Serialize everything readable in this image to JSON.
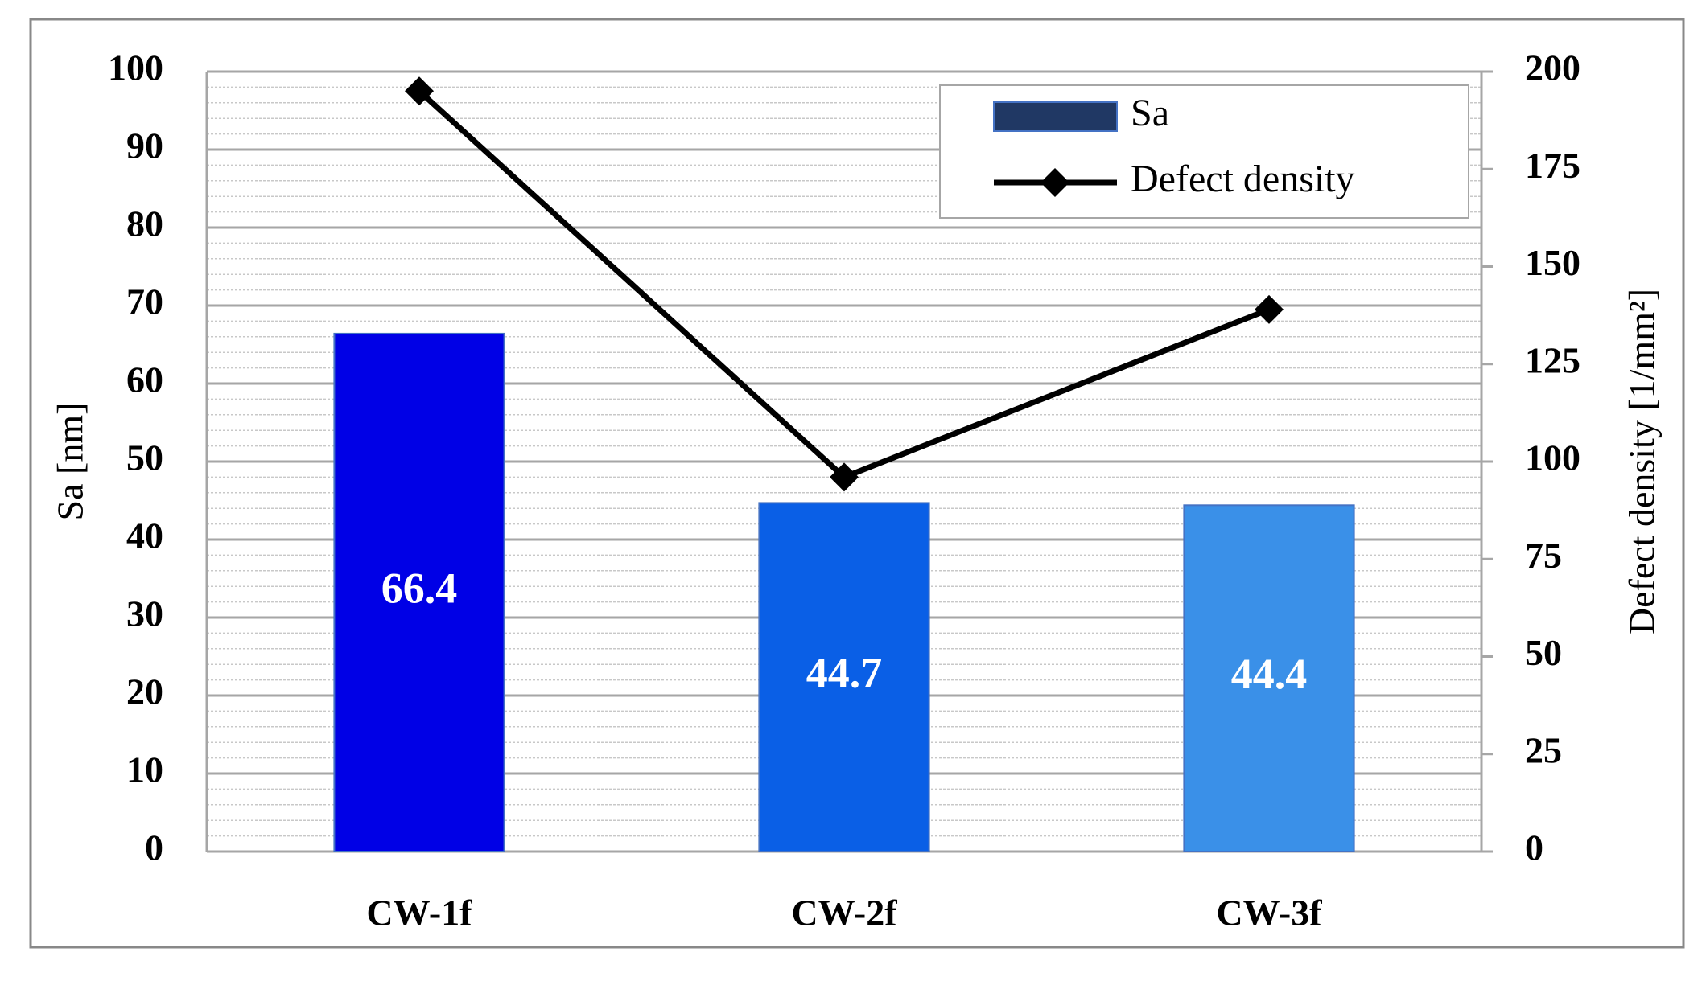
{
  "chart_data": {
    "type": "bar",
    "categories": [
      "CW-1f",
      "CW-2f",
      "CW-3f"
    ],
    "series": [
      {
        "name": "Sa",
        "type": "bar",
        "color": "#203864",
        "bar_colors": [
          "#0000e6",
          "#0a5fe6",
          "#3a90e8"
        ],
        "values": [
          66.4,
          44.7,
          44.4
        ],
        "show_values": true
      },
      {
        "name": "Defect density",
        "type": "line",
        "axis": "y2",
        "color": "#000000",
        "values": [
          195,
          96,
          139
        ]
      }
    ],
    "ylabel": "Sa [nm]",
    "y2label": "Defect density [1/mm²]",
    "ylim": [
      0,
      100
    ],
    "yticks": [
      0,
      10,
      20,
      30,
      40,
      50,
      60,
      70,
      80,
      90,
      100
    ],
    "y2lim": [
      0,
      200
    ],
    "y2ticks": [
      0,
      25,
      50,
      75,
      100,
      125,
      150,
      175,
      200
    ],
    "grid": true,
    "minor_grid_divisions": 5,
    "legend": "upper right"
  }
}
